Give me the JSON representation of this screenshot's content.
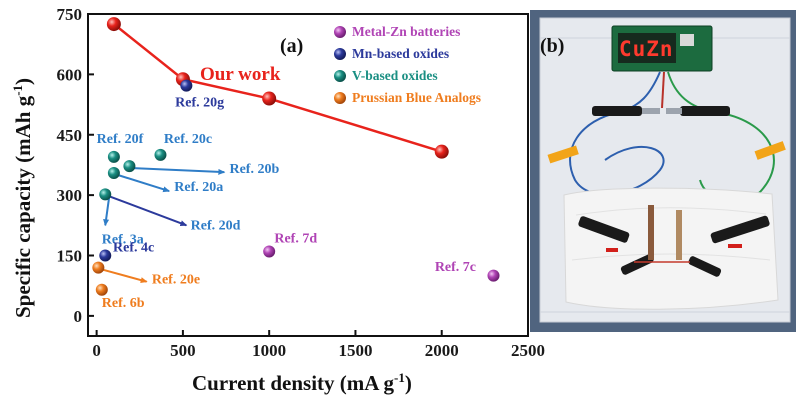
{
  "chart_data": {
    "type": "scatter",
    "panel_label": "(a)",
    "xlabel": "Current density (mA g",
    "xlabel_sup": "-1",
    "xlabel_close": ")",
    "ylabel": "Specific capacity (mAh g",
    "ylabel_sup": "-1",
    "ylabel_close": ")",
    "xlim": [
      -50,
      2500
    ],
    "ylim": [
      -50,
      750
    ],
    "xticks": [
      0,
      500,
      1000,
      1500,
      2000,
      2500
    ],
    "yticks": [
      0,
      150,
      300,
      450,
      600,
      750
    ],
    "legend": [
      {
        "label": "Metal-Zn batteries",
        "color": "#b044b5"
      },
      {
        "label": "Mn-based oxides",
        "color": "#2c3a9c"
      },
      {
        "label": "V-based oxides",
        "color": "#1a8f83"
      },
      {
        "label": "Prussian Blue Analogs",
        "color": "#ef7d1f"
      }
    ],
    "our_work": {
      "label": "Our work",
      "color": "#e8231c",
      "x": [
        100,
        500,
        1000,
        2000
      ],
      "y": [
        725,
        588,
        540,
        408
      ]
    },
    "references": [
      {
        "label": "Ref. 20g",
        "x": 520,
        "y": 572,
        "group": 1,
        "lx": 455,
        "ly": 520,
        "arrow": null
      },
      {
        "label": "Ref. 20f",
        "x": 100,
        "y": 395,
        "group": 2,
        "lx": 0,
        "ly": 430,
        "arrow": null
      },
      {
        "label": "Ref. 20c",
        "x": 370,
        "y": 400,
        "group": 2,
        "lx": 390,
        "ly": 430,
        "arrow": null
      },
      {
        "label": "Ref. 20b",
        "x": 190,
        "y": 372,
        "group": 2,
        "lx": 770,
        "ly": 355,
        "arrow": [
          740,
          357
        ]
      },
      {
        "label": "Ref. 20a",
        "x": 100,
        "y": 355,
        "group": 2,
        "lx": 450,
        "ly": 310,
        "arrow": [
          420,
          310
        ]
      },
      {
        "label": "Ref. 20d",
        "x": 50,
        "y": 302,
        "group": 2,
        "lx": 545,
        "ly": 215,
        "arrow": [
          520,
          225
        ]
      },
      {
        "label": "Ref. 3a",
        "x": 50,
        "y": 302,
        "group": 2,
        "lx": 30,
        "ly": 180,
        "arrow": [
          50,
          225
        ]
      },
      {
        "label": "Ref. 4c",
        "x": 50,
        "y": 150,
        "group": 1,
        "lx": 95,
        "ly": 160,
        "arrow": null
      },
      {
        "label": "Ref. 7d",
        "x": 1000,
        "y": 160,
        "group": 0,
        "lx": 1030,
        "ly": 182,
        "arrow": null
      },
      {
        "label": "Ref. 7c",
        "x": 2300,
        "y": 100,
        "group": 0,
        "lx": 1960,
        "ly": 112,
        "arrow": null
      },
      {
        "label": "Ref. 20e",
        "x": 10,
        "y": 120,
        "group": 3,
        "lx": 320,
        "ly": 80,
        "arrow": [
          290,
          85
        ]
      },
      {
        "label": "Ref. 6b",
        "x": 30,
        "y": 65,
        "group": 3,
        "lx": 30,
        "ly": 22,
        "arrow": null
      }
    ]
  },
  "photo": {
    "panel_label": "(b)",
    "display_text": "CuZn"
  }
}
